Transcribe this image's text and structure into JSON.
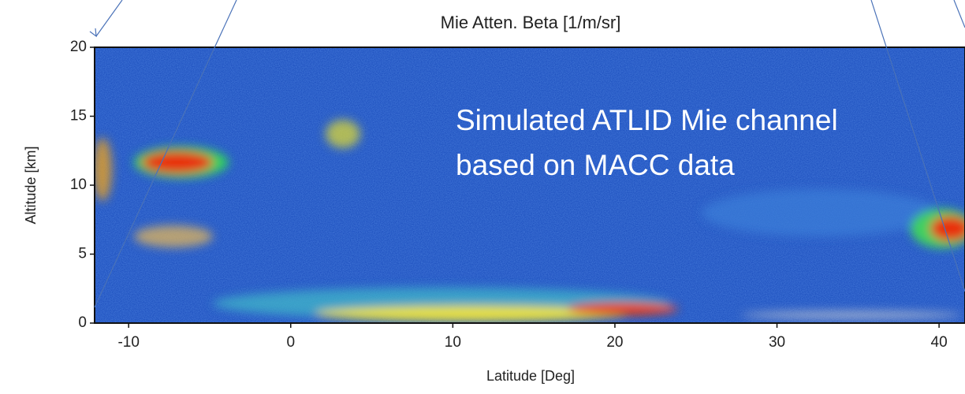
{
  "chart_data": {
    "type": "heatmap",
    "title": "Mie Atten. Beta [1/m/sr]",
    "xlabel": "Latitude [Deg]",
    "ylabel": "Altitude [km]",
    "annotation": "Simulated ATLID Mie channel based on MACC data",
    "xlim": [
      -12.1,
      41.6
    ],
    "ylim": [
      0,
      20
    ],
    "xticks": [
      -10,
      0,
      10,
      20,
      30,
      40
    ],
    "yticks": [
      0,
      5,
      10,
      15,
      20
    ]
  }
}
